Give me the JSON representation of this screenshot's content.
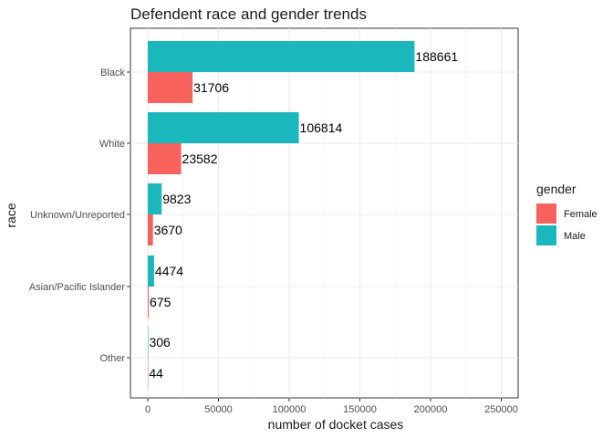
{
  "chart_data": {
    "type": "bar",
    "orientation": "horizontal",
    "title": "Defendent race and gender trends",
    "xlabel": "number of docket cases",
    "ylabel": "race",
    "categories": [
      "Black",
      "White",
      "Unknown/Unreported",
      "Asian/Pacific Islander",
      "Other"
    ],
    "series": [
      {
        "name": "Male",
        "color": "#1ab7bd",
        "values": [
          188661,
          106814,
          9823,
          4474,
          306
        ]
      },
      {
        "name": "Female",
        "color": "#f8625d",
        "values": [
          31706,
          23582,
          3670,
          675,
          44
        ]
      }
    ],
    "xlim": [
      0,
      260000
    ],
    "xticks": [
      0,
      50000,
      100000,
      150000,
      200000,
      250000
    ],
    "grid": true,
    "legend": {
      "title": "gender",
      "position": "right",
      "entries": [
        {
          "label": "Female",
          "color": "#f8625d"
        },
        {
          "label": "Male",
          "color": "#1ab7bd"
        }
      ]
    }
  }
}
